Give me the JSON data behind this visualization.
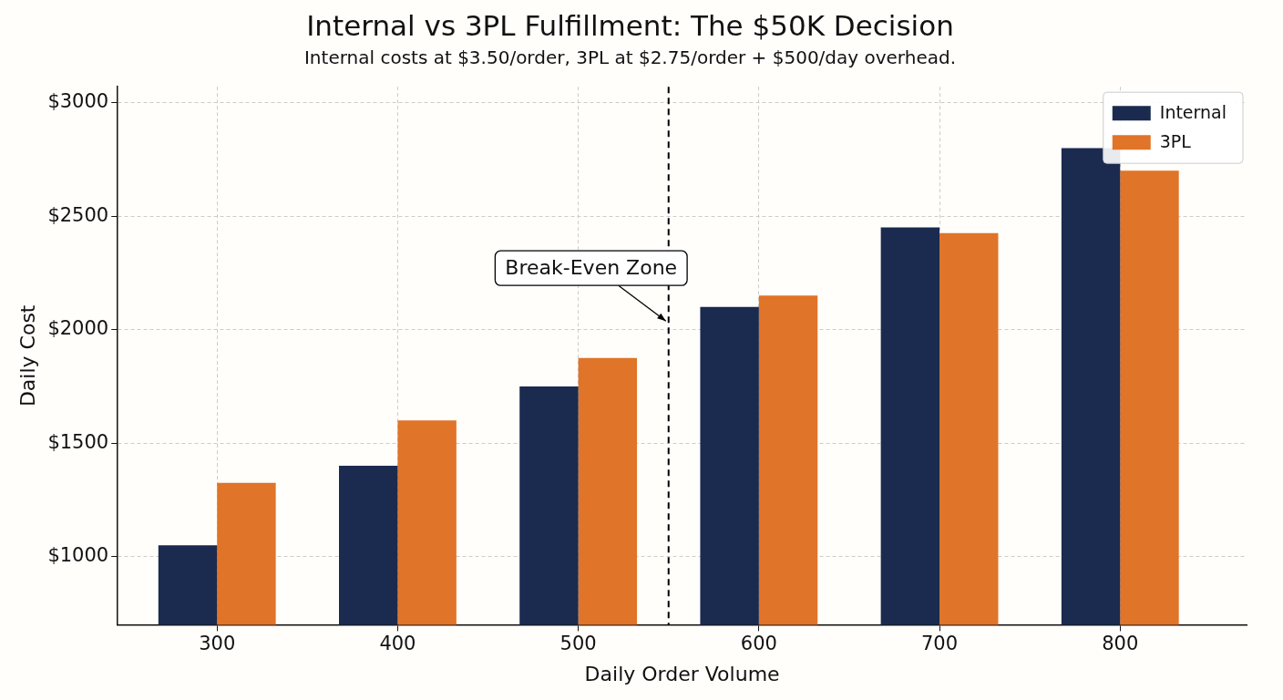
{
  "chart_data": {
    "type": "bar",
    "title": "Internal vs 3PL Fulfillment: The $50K Decision",
    "subtitle": "Internal costs at $3.50/order, 3PL at $2.75/order + $500/day overhead.",
    "xlabel": "Daily Order Volume",
    "ylabel": "Daily Cost",
    "x": [
      300,
      400,
      500,
      600,
      700,
      800
    ],
    "series": [
      {
        "name": "Internal",
        "color": "#1b2a4f",
        "values": [
          1050,
          1400,
          1750,
          2100,
          2450,
          2800
        ]
      },
      {
        "name": "3PL",
        "color": "#e07428",
        "values": [
          1325,
          1600,
          1875,
          2150,
          2425,
          2700
        ]
      }
    ],
    "xlim": [
      245,
      870
    ],
    "xticks": [
      300,
      400,
      500,
      600,
      700,
      800
    ],
    "ylim": [
      700,
      3070
    ],
    "yticks": [
      {
        "value": 1000,
        "label": "$1000"
      },
      {
        "value": 1500,
        "label": "$1500"
      },
      {
        "value": 2000,
        "label": "$2000"
      },
      {
        "value": 2500,
        "label": "$2500"
      },
      {
        "value": 3000,
        "label": "$3000"
      }
    ],
    "ref_lines": [
      {
        "axis": "x",
        "value": 550,
        "color": "#000000",
        "line_style": "dashed"
      }
    ],
    "annotations": [
      {
        "text": "Break-Even Zone",
        "x": 550,
        "y": 2030
      }
    ],
    "grid": true,
    "legend": "top right"
  }
}
